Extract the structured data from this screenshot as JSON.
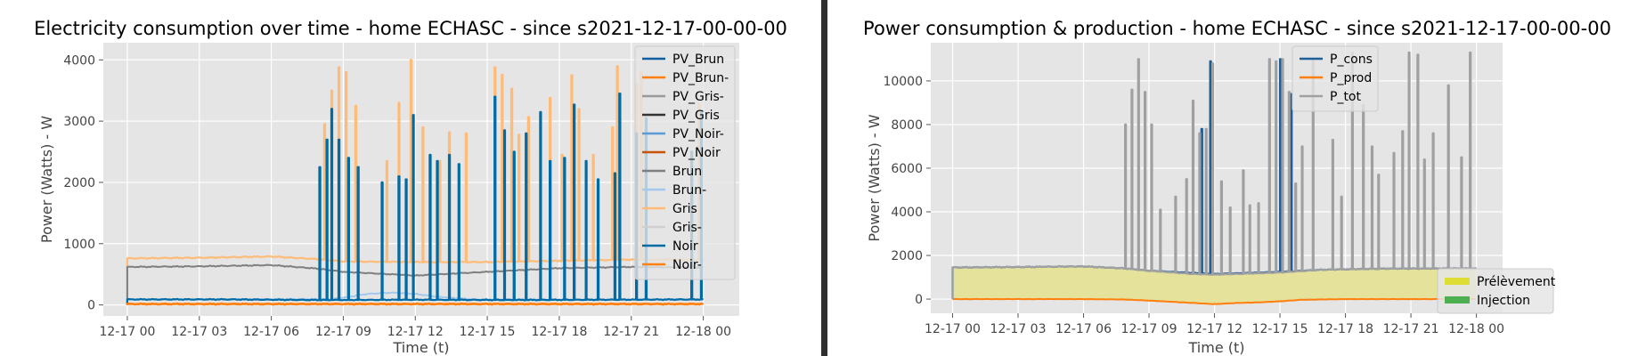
{
  "charts": [
    {
      "type": "line",
      "title": "Electricity consumption over time - home ECHASC - since s2021-12-17-00-00-00",
      "xlabel": "Time (t)",
      "ylabel": "Power (Watts) - W",
      "x_ticks": [
        "12-17 00",
        "12-17 03",
        "12-17 06",
        "12-17 09",
        "12-17 12",
        "12-17 15",
        "12-17 18",
        "12-17 21",
        "12-18 00"
      ],
      "xlim_hours": [
        -1,
        25.5
      ],
      "y_ticks": [
        0,
        1000,
        2000,
        3000,
        4000
      ],
      "ylim": [
        -180,
        4280
      ],
      "grid": true,
      "legend_position": "top-right",
      "legend": [
        {
          "name": "PV_Brun",
          "color": "#0e5fa0"
        },
        {
          "name": "PV_Brun-",
          "color": "#ff7f0e"
        },
        {
          "name": "PV_Gris-",
          "color": "#9a9a9a"
        },
        {
          "name": "PV_Gris",
          "color": "#333333"
        },
        {
          "name": "PV_Noir-",
          "color": "#5b9bd5"
        },
        {
          "name": "PV_Noir",
          "color": "#c85200"
        },
        {
          "name": "Brun",
          "color": "#7f7f7f"
        },
        {
          "name": "Brun-",
          "color": "#a2c8ec"
        },
        {
          "name": "Gris",
          "color": "#ffbc79"
        },
        {
          "name": "Gris-",
          "color": "#cfcfcf"
        },
        {
          "name": "Noir",
          "color": "#006ba4"
        },
        {
          "name": "Noir-",
          "color": "#ff800e"
        }
      ],
      "series": [
        {
          "name": "Gris",
          "color": "#ffbc79",
          "baseline": [
            [
              0,
              760
            ],
            [
              3,
              770
            ],
            [
              6,
              790
            ],
            [
              7.8,
              750
            ],
            [
              9,
              710
            ],
            [
              12,
              700
            ],
            [
              15,
              700
            ],
            [
              18,
              720
            ],
            [
              21,
              740
            ],
            [
              24,
              740
            ]
          ],
          "spikes": [
            [
              8.2,
              2950
            ],
            [
              8.5,
              3500
            ],
            [
              8.8,
              3880
            ],
            [
              9.1,
              3800
            ],
            [
              9.5,
              3250
            ],
            [
              10.8,
              2350
            ],
            [
              11.3,
              3300
            ],
            [
              11.8,
              4000
            ],
            [
              12.3,
              2900
            ],
            [
              13.0,
              2350
            ],
            [
              13.4,
              2820
            ],
            [
              14.1,
              2800
            ],
            [
              15.3,
              3880
            ],
            [
              15.6,
              3760
            ],
            [
              16.0,
              3530
            ],
            [
              16.3,
              2780
            ],
            [
              16.7,
              3070
            ],
            [
              17.6,
              3380
            ],
            [
              18.1,
              2450
            ],
            [
              18.5,
              3750
            ],
            [
              18.8,
              3200
            ],
            [
              19.4,
              2450
            ],
            [
              20.2,
              2900
            ],
            [
              20.4,
              3900
            ],
            [
              21.2,
              3600
            ],
            [
              21.4,
              3800
            ],
            [
              23.8,
              3280
            ]
          ]
        },
        {
          "name": "Brun",
          "color": "#7f7f7f",
          "baseline": [
            [
              0,
              620
            ],
            [
              3,
              630
            ],
            [
              6,
              650
            ],
            [
              8,
              590
            ],
            [
              9,
              540
            ],
            [
              10,
              520
            ],
            [
              12,
              480
            ],
            [
              14,
              520
            ],
            [
              16,
              560
            ],
            [
              18,
              600
            ],
            [
              21,
              620
            ],
            [
              24,
              610
            ]
          ],
          "spikes": []
        },
        {
          "name": "Brun-",
          "color": "#a2c8ec",
          "baseline": [
            [
              0,
              90
            ],
            [
              8.5,
              95
            ],
            [
              9.2,
              130
            ],
            [
              10,
              180
            ],
            [
              11,
              200
            ],
            [
              12,
              180
            ],
            [
              13,
              130
            ],
            [
              14.5,
              90
            ],
            [
              24,
              85
            ]
          ],
          "spikes": []
        },
        {
          "name": "Noir",
          "color": "#006ba4",
          "baseline": [
            [
              0,
              90
            ],
            [
              4,
              90
            ],
            [
              8,
              80
            ],
            [
              12,
              85
            ],
            [
              16,
              80
            ],
            [
              20,
              85
            ],
            [
              24,
              90
            ]
          ],
          "spikes": [
            [
              8.0,
              2250
            ],
            [
              8.3,
              2700
            ],
            [
              8.5,
              3200
            ],
            [
              8.8,
              2700
            ],
            [
              9.2,
              2400
            ],
            [
              9.6,
              2250
            ],
            [
              10.6,
              2000
            ],
            [
              11.3,
              2100
            ],
            [
              11.6,
              2050
            ],
            [
              11.9,
              3100
            ],
            [
              12.6,
              2450
            ],
            [
              12.9,
              2350
            ],
            [
              13.4,
              2450
            ],
            [
              13.8,
              2300
            ],
            [
              15.3,
              3400
            ],
            [
              15.7,
              2850
            ],
            [
              16.1,
              2500
            ],
            [
              16.6,
              2800
            ],
            [
              17.2,
              3150
            ],
            [
              17.6,
              2350
            ],
            [
              18.2,
              2400
            ],
            [
              18.6,
              3270
            ],
            [
              19.1,
              2350
            ],
            [
              19.6,
              2050
            ],
            [
              20.3,
              2150
            ],
            [
              20.5,
              3450
            ],
            [
              21.2,
              2800
            ],
            [
              21.6,
              3050
            ],
            [
              23.5,
              2500
            ],
            [
              23.9,
              3150
            ]
          ]
        },
        {
          "name": "PV_Brun-",
          "color": "#ff7f0e",
          "baseline": [
            [
              0,
              20
            ],
            [
              24,
              20
            ]
          ],
          "spikes": []
        },
        {
          "name": "Noir-",
          "color": "#ff800e",
          "baseline": [
            [
              0,
              10
            ],
            [
              24,
              10
            ]
          ],
          "spikes": []
        }
      ]
    },
    {
      "type": "line",
      "title": "Power consumption & production - home ECHASC - since s2021-12-17-00-00-00",
      "xlabel": "Time (t)",
      "ylabel": "Power (Watts) - W",
      "x_ticks": [
        "12-17 00",
        "12-17 03",
        "12-17 06",
        "12-17 09",
        "12-17 12",
        "12-17 15",
        "12-17 18",
        "12-17 21",
        "12-18 00"
      ],
      "xlim_hours": [
        -1,
        25.2
      ],
      "y_ticks": [
        0,
        2000,
        4000,
        6000,
        8000,
        10000
      ],
      "ylim": [
        -650,
        11750
      ],
      "grid": true,
      "legend_position": "top-right",
      "legend": [
        {
          "name": "P_cons",
          "color": "#1f5f99"
        },
        {
          "name": "P_prod",
          "color": "#ff7f0e"
        },
        {
          "name": "P_tot",
          "color": "#a0a0a0"
        }
      ],
      "area_legend_position": "bottom-right",
      "area_legend": [
        {
          "name": "Prélèvement",
          "color": "#dddd33"
        },
        {
          "name": "Injection",
          "color": "#4caf50"
        }
      ],
      "area_color": "#e4e29b",
      "series": [
        {
          "name": "P_prod",
          "color": "#ff7f0e",
          "baseline": [
            [
              0,
              0
            ],
            [
              6,
              0
            ],
            [
              8,
              -20
            ],
            [
              10,
              -120
            ],
            [
              12,
              -230
            ],
            [
              13,
              -180
            ],
            [
              14,
              -150
            ],
            [
              15,
              -100
            ],
            [
              16,
              -30
            ],
            [
              18,
              0
            ],
            [
              24,
              0
            ]
          ],
          "spikes": []
        },
        {
          "name": "P_cons",
          "color": "#1f5f99",
          "baseline": [
            [
              0,
              1450
            ],
            [
              3,
              1470
            ],
            [
              6,
              1500
            ],
            [
              8,
              1400
            ],
            [
              9,
              1300
            ],
            [
              11,
              1200
            ],
            [
              12,
              1150
            ],
            [
              13,
              1180
            ],
            [
              15,
              1250
            ],
            [
              17,
              1350
            ],
            [
              20,
              1400
            ],
            [
              24,
              1400
            ]
          ],
          "spikes": [
            [
              11.8,
              10900
            ],
            [
              15.0,
              11000
            ],
            [
              15.5,
              9400
            ],
            [
              11.4,
              7800
            ]
          ]
        },
        {
          "name": "P_tot",
          "color": "#a0a0a0",
          "baseline": [
            [
              0,
              1450
            ],
            [
              3,
              1470
            ],
            [
              6,
              1500
            ],
            [
              8,
              1400
            ],
            [
              9,
              1300
            ],
            [
              11,
              1150
            ],
            [
              12,
              1120
            ],
            [
              13,
              1150
            ],
            [
              15,
              1220
            ],
            [
              17,
              1350
            ],
            [
              20,
              1400
            ],
            [
              24,
              1400
            ]
          ],
          "spikes": [
            [
              7.9,
              8000
            ],
            [
              8.2,
              9600
            ],
            [
              8.5,
              11000
            ],
            [
              8.8,
              9500
            ],
            [
              9.1,
              8000
            ],
            [
              9.5,
              4100
            ],
            [
              10.2,
              4700
            ],
            [
              10.7,
              5500
            ],
            [
              11.0,
              9100
            ],
            [
              11.3,
              7600
            ],
            [
              11.6,
              7800
            ],
            [
              11.9,
              10800
            ],
            [
              12.3,
              5400
            ],
            [
              12.7,
              4200
            ],
            [
              13.3,
              5900
            ],
            [
              13.6,
              4300
            ],
            [
              14.0,
              4400
            ],
            [
              14.5,
              11000
            ],
            [
              14.8,
              10900
            ],
            [
              15.1,
              11000
            ],
            [
              15.4,
              9500
            ],
            [
              15.7,
              5300
            ],
            [
              16.0,
              7000
            ],
            [
              16.5,
              11000
            ],
            [
              17.4,
              7300
            ],
            [
              17.8,
              4700
            ],
            [
              18.3,
              11300
            ],
            [
              18.8,
              8900
            ],
            [
              19.2,
              7000
            ],
            [
              19.5,
              5700
            ],
            [
              20.2,
              6700
            ],
            [
              20.6,
              7700
            ],
            [
              20.9,
              11300
            ],
            [
              21.3,
              11200
            ],
            [
              21.6,
              6400
            ],
            [
              22.0,
              7600
            ],
            [
              22.7,
              9800
            ],
            [
              23.3,
              6500
            ],
            [
              23.7,
              11300
            ],
            [
              24.0,
              10200
            ]
          ]
        }
      ]
    }
  ]
}
